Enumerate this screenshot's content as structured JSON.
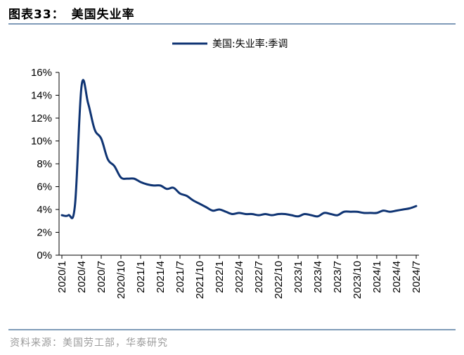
{
  "header": {
    "figure_label": "图表33：",
    "figure_title": "美国失业率"
  },
  "source": "资料来源：美国劳工部，华泰研究",
  "colors": {
    "line": "#0f3473",
    "rule": "#7f9bb8",
    "axis": "#000000"
  },
  "chart_data": {
    "type": "line",
    "title": "",
    "xlabel": "",
    "ylabel": "",
    "ylim": [
      0,
      16
    ],
    "y_tick_labels": [
      "0%",
      "2%",
      "4%",
      "6%",
      "8%",
      "10%",
      "12%",
      "14%",
      "16%"
    ],
    "x_tick_labels": [
      "2020/1",
      "2020/4",
      "2020/7",
      "2020/10",
      "2021/1",
      "2021/4",
      "2021/7",
      "2021/10",
      "2022/1",
      "2022/4",
      "2022/7",
      "2022/10",
      "2023/1",
      "2023/4",
      "2023/7",
      "2023/10",
      "2024/1",
      "2024/4",
      "2024/7"
    ],
    "legend": {
      "position": "top-center"
    },
    "x": [
      "2020/1",
      "2020/2",
      "2020/3",
      "2020/4",
      "2020/5",
      "2020/6",
      "2020/7",
      "2020/8",
      "2020/9",
      "2020/10",
      "2020/11",
      "2020/12",
      "2021/1",
      "2021/2",
      "2021/3",
      "2021/4",
      "2021/5",
      "2021/6",
      "2021/7",
      "2021/8",
      "2021/9",
      "2021/10",
      "2021/11",
      "2021/12",
      "2022/1",
      "2022/2",
      "2022/3",
      "2022/4",
      "2022/5",
      "2022/6",
      "2022/7",
      "2022/8",
      "2022/9",
      "2022/10",
      "2022/11",
      "2022/12",
      "2023/1",
      "2023/2",
      "2023/3",
      "2023/4",
      "2023/5",
      "2023/6",
      "2023/7",
      "2023/8",
      "2023/9",
      "2023/10",
      "2023/11",
      "2023/12",
      "2024/1",
      "2024/2",
      "2024/3",
      "2024/4",
      "2024/5",
      "2024/6",
      "2024/7"
    ],
    "series": [
      {
        "name": "美国:失业率:季调",
        "values": [
          3.5,
          3.5,
          4.4,
          14.8,
          13.3,
          11.0,
          10.2,
          8.4,
          7.8,
          6.8,
          6.7,
          6.7,
          6.4,
          6.2,
          6.1,
          6.1,
          5.8,
          5.9,
          5.4,
          5.2,
          4.8,
          4.5,
          4.2,
          3.9,
          4.0,
          3.8,
          3.6,
          3.7,
          3.6,
          3.6,
          3.5,
          3.6,
          3.5,
          3.6,
          3.6,
          3.5,
          3.4,
          3.6,
          3.5,
          3.4,
          3.7,
          3.6,
          3.5,
          3.8,
          3.8,
          3.8,
          3.7,
          3.7,
          3.7,
          3.9,
          3.8,
          3.9,
          4.0,
          4.1,
          4.3
        ]
      }
    ]
  }
}
